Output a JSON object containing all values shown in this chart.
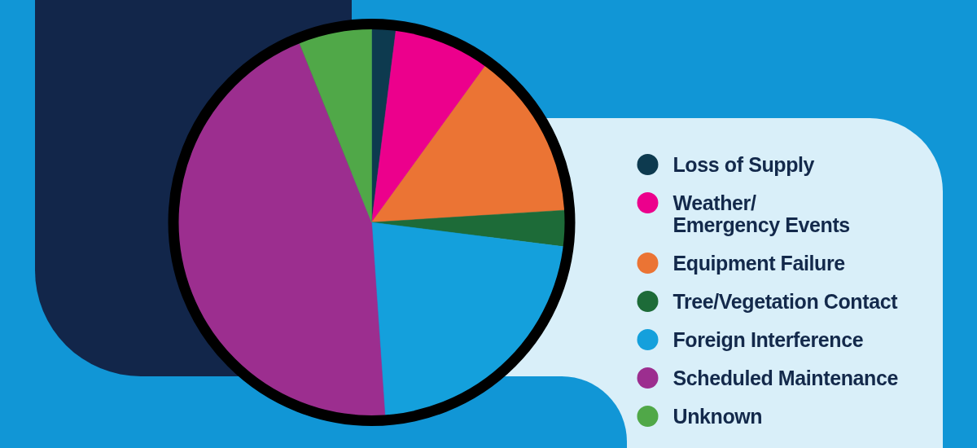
{
  "chart_data": {
    "type": "pie",
    "categories": [
      "Loss of Supply",
      "Weather/\nEmergency Events",
      "Equipment Failure",
      "Tree/Vegetation Contact",
      "Foreign Interference",
      "Scheduled Maintenance",
      "Unknown"
    ],
    "values": [
      2.0,
      8.0,
      14.0,
      3.0,
      21.9,
      45.0,
      6.1
    ],
    "colors": [
      "#0d3a4f",
      "#ec008c",
      "#eb7434",
      "#1d6b38",
      "#14a0dc",
      "#9c2e8f",
      "#50a848"
    ],
    "legend": "right"
  }
}
